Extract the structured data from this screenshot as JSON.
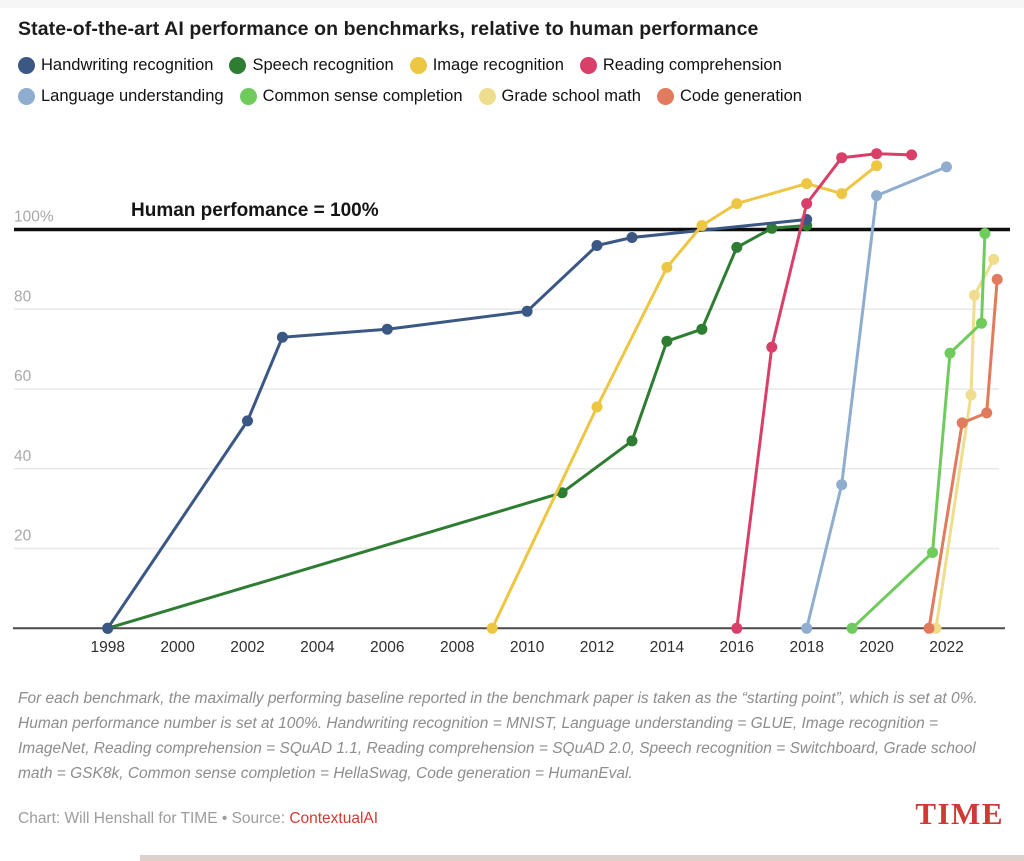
{
  "title": "State-of-the-art AI performance on benchmarks, relative to human performance",
  "legend": {
    "rows": [
      [
        {
          "label": "Handwriting recognition",
          "color": "#3b5784"
        },
        {
          "label": "Speech recognition",
          "color": "#2e7d32"
        },
        {
          "label": "Image recognition",
          "color": "#edc644"
        },
        {
          "label": "Reading comprehension",
          "color": "#d84069"
        }
      ],
      [
        {
          "label": "Language understanding",
          "color": "#8fadce"
        },
        {
          "label": "Common sense completion",
          "color": "#70cb5d"
        },
        {
          "label": "Grade school math",
          "color": "#eedd8c"
        },
        {
          "label": "Code generation",
          "color": "#e27a5e"
        }
      ]
    ]
  },
  "chart_data": {
    "type": "line",
    "title": "State-of-the-art AI performance on benchmarks, relative to human performance",
    "xlabel": "",
    "ylabel": "",
    "x_axis": {
      "ticks": [
        1998,
        2000,
        2002,
        2004,
        2006,
        2008,
        2010,
        2012,
        2014,
        2016,
        2018,
        2020,
        2022
      ],
      "range": [
        1995.3,
        2023.7
      ]
    },
    "y_axis": {
      "ticks": [
        {
          "value": 100,
          "label": "100%"
        },
        {
          "value": 80,
          "label": "80"
        },
        {
          "value": 60,
          "label": "60"
        },
        {
          "value": 40,
          "label": "40"
        },
        {
          "value": 20,
          "label": "20"
        }
      ],
      "range": [
        0,
        125
      ],
      "grid": true
    },
    "human_performance_line": {
      "value": 100,
      "label": "Human perfomance = 100%"
    },
    "legend_position": "top",
    "draw_order": [
      "Speech recognition",
      "Handwriting recognition",
      "Image recognition",
      "Language understanding",
      "Reading comprehension",
      "Grade school math",
      "Code generation",
      "Common sense completion"
    ],
    "series": [
      {
        "name": "Handwriting recognition",
        "color": "#3b5784",
        "points": [
          [
            1998,
            0
          ],
          [
            2002,
            52
          ],
          [
            2003,
            73
          ],
          [
            2006,
            75
          ],
          [
            2010,
            79.5
          ],
          [
            2012,
            96
          ],
          [
            2013,
            98
          ],
          [
            2018,
            102.5
          ]
        ]
      },
      {
        "name": "Speech recognition",
        "color": "#2e7d32",
        "points": [
          [
            1998,
            0
          ],
          [
            2011,
            34
          ],
          [
            2013,
            47
          ],
          [
            2014,
            72
          ],
          [
            2015,
            75
          ],
          [
            2016,
            95.5
          ],
          [
            2017,
            100.3
          ],
          [
            2018,
            101
          ]
        ]
      },
      {
        "name": "Image recognition",
        "color": "#edc644",
        "points": [
          [
            2009,
            0
          ],
          [
            2012,
            55.5
          ],
          [
            2014,
            90.5
          ],
          [
            2015,
            101
          ],
          [
            2016,
            106.5
          ],
          [
            2018,
            111.5
          ],
          [
            2019,
            109
          ],
          [
            2020,
            116
          ]
        ]
      },
      {
        "name": "Reading comprehension",
        "color": "#d84069",
        "points": [
          [
            2016,
            0
          ],
          [
            2017,
            70.5
          ],
          [
            2018,
            106.5
          ],
          [
            2019,
            118
          ],
          [
            2020,
            119
          ],
          [
            2021,
            118.7
          ]
        ]
      },
      {
        "name": "Language understanding",
        "color": "#8fadce",
        "points": [
          [
            2018,
            0
          ],
          [
            2019,
            36
          ],
          [
            2020,
            108.5
          ],
          [
            2022,
            115.7
          ]
        ]
      },
      {
        "name": "Common sense completion",
        "color": "#70cb5d",
        "points": [
          [
            2019.3,
            0
          ],
          [
            2021.6,
            19
          ],
          [
            2022.1,
            69
          ],
          [
            2023.0,
            76.5
          ],
          [
            2023.1,
            99
          ]
        ]
      },
      {
        "name": "Grade school math",
        "color": "#eedd8c",
        "points": [
          [
            2021.7,
            0
          ],
          [
            2022.7,
            58.5
          ],
          [
            2022.8,
            83.5
          ],
          [
            2023.35,
            92.5
          ]
        ]
      },
      {
        "name": "Code generation",
        "color": "#e27a5e",
        "points": [
          [
            2021.5,
            0
          ],
          [
            2022.45,
            51.5
          ],
          [
            2023.15,
            54
          ],
          [
            2023.45,
            87.5
          ]
        ]
      }
    ]
  },
  "footnote": "For each benchmark, the maximally performing baseline reported in the benchmark paper is taken as the “starting point”, which is set at 0%. Human performance number is set at 100%. Handwriting recognition = MNIST, Language understanding = GLUE, Image recognition = ImageNet, Reading comprehension = SQuAD 1.1, Reading comprehension = SQuAD 2.0, Speech recognition = Switchboard, Grade school math = GSK8k, Common sense completion = HellaSwag, Code generation = HumanEval.",
  "credit": {
    "prefix": "Chart: Will Henshall for TIME • Source: ",
    "source": "ContextualAI"
  },
  "brand": "TIME"
}
